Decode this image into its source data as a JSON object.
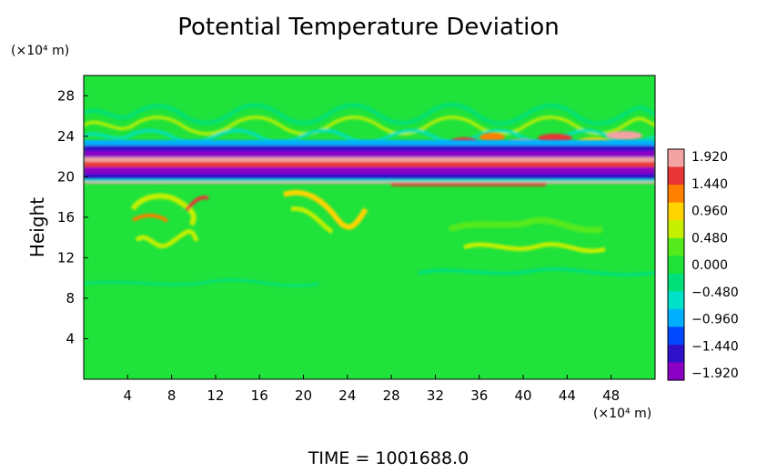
{
  "chart_data": {
    "type": "heatmap",
    "title": "Potential Temperature Deviation",
    "ylabel": "Height",
    "xlabel": "",
    "x_unit": "(×10⁴ m)",
    "y_unit": "(×10⁴ m)",
    "footer": "TIME  =  1001688.0",
    "xlim": [
      0,
      52
    ],
    "ylim": [
      0,
      30
    ],
    "x_ticks": [
      {
        "value": 4,
        "label": "4"
      },
      {
        "value": 8,
        "label": "8"
      },
      {
        "value": 12,
        "label": "12"
      },
      {
        "value": 16,
        "label": "16"
      },
      {
        "value": 20,
        "label": "20"
      },
      {
        "value": 24,
        "label": "24"
      },
      {
        "value": 28,
        "label": "28"
      },
      {
        "value": 32,
        "label": "32"
      },
      {
        "value": 36,
        "label": "36"
      },
      {
        "value": 40,
        "label": "40"
      },
      {
        "value": 44,
        "label": "44"
      },
      {
        "value": 48,
        "label": "48"
      }
    ],
    "y_ticks": [
      {
        "value": 4,
        "label": "4"
      },
      {
        "value": 8,
        "label": "8"
      },
      {
        "value": 12,
        "label": "12"
      },
      {
        "value": 16,
        "label": "16"
      },
      {
        "value": 20,
        "label": "20"
      },
      {
        "value": 24,
        "label": "24"
      },
      {
        "value": 28,
        "label": "28"
      }
    ],
    "colorbar": {
      "range": [
        -1.92,
        1.92
      ],
      "labels": [
        "1.920",
        "1.440",
        "0.960",
        "0.480",
        "0.000",
        "−0.480",
        "−0.960",
        "−1.440",
        "−1.920"
      ],
      "colors": [
        "#f3a3a3",
        "#e83535",
        "#ff7f00",
        "#ffd400",
        "#c6f000",
        "#55ea1e",
        "#1fe23a",
        "#00e07a",
        "#00e2c7",
        "#00b0ff",
        "#0048ff",
        "#2e11c9",
        "#8a00c4"
      ]
    },
    "colors": {
      "background": "#1fe23a",
      "frame": "#000000"
    }
  }
}
